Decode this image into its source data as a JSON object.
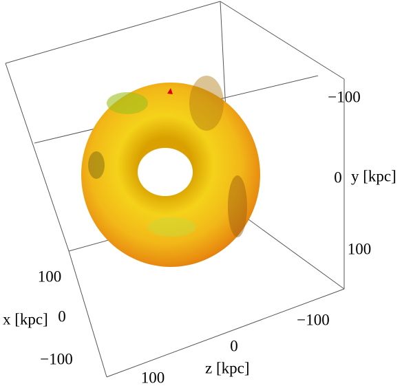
{
  "axes": {
    "x": {
      "label": "x [kpc]",
      "ticks": [
        "100",
        "0",
        "−100"
      ]
    },
    "y": {
      "label": "y [kpc]",
      "ticks": [
        "−100",
        "0",
        "100"
      ]
    },
    "z": {
      "label": "z [kpc]",
      "ticks": [
        "−100",
        "0",
        "100"
      ]
    }
  }
}
